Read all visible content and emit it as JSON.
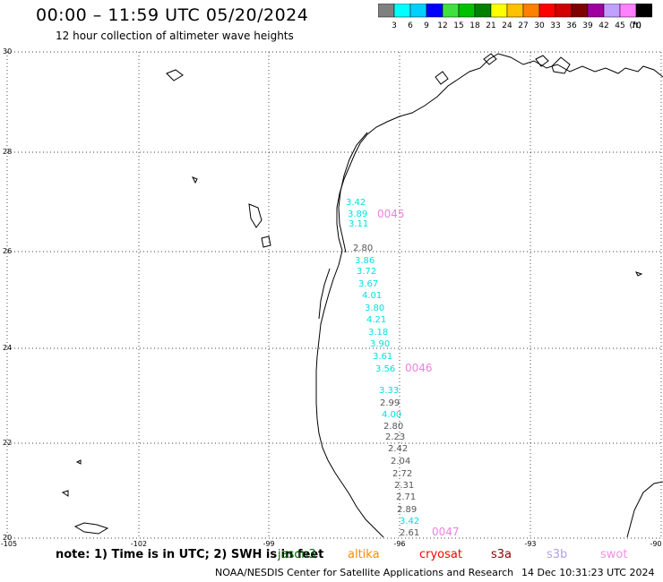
{
  "header": {
    "title": "00:00 – 11:59 UTC 05/20/2024",
    "subtitle": "12 hour collection of altimeter wave heights"
  },
  "color_scale": {
    "colors": [
      "#808080",
      "#00ffff",
      "#00d0ff",
      "#0000ff",
      "#40e040",
      "#00c000",
      "#008000",
      "#ffff00",
      "#ffc000",
      "#ff8000",
      "#ff0000",
      "#d00000",
      "#800000",
      "#a000a0",
      "#c0a0ff",
      "#ff80ff",
      "#000000"
    ],
    "labels": [
      "3",
      "6",
      "9",
      "12",
      "15",
      "18",
      "21",
      "24",
      "27",
      "30",
      "33",
      "36",
      "39",
      "42",
      "45",
      "70"
    ],
    "unit": "(ft)"
  },
  "grid": {
    "lon_labels": [
      "-105",
      "-102",
      "-99",
      "-96",
      "-93",
      "-90"
    ],
    "lat_labels": [
      "30",
      "28",
      "26",
      "24",
      "22",
      "20"
    ]
  },
  "observations": {
    "cyan": [
      "3.42",
      "3.89",
      "3.11",
      "3.86",
      "3.72",
      "3.67",
      "4.01",
      "3.80",
      "4.21",
      "3.18",
      "3.90",
      "3.61",
      "3.56",
      "3.33",
      "4.00",
      "3.42"
    ],
    "gray": [
      "2.80",
      "2.99",
      "2.80",
      "2.23",
      "2.42",
      "2.04",
      "2.72",
      "2.31",
      "2.71",
      "2.89",
      "2.61"
    ],
    "pass_ids": [
      "0045",
      "0046",
      "0047"
    ]
  },
  "footer": {
    "note": "note:  1) Time is in UTC;  2) SWH is in feet",
    "satellites": [
      {
        "name": "jason3",
        "color": "#006400"
      },
      {
        "name": "altika",
        "color": "#ff8c00"
      },
      {
        "name": "cryosat",
        "color": "#ff0000"
      },
      {
        "name": "s3a",
        "color": "#8b0000"
      },
      {
        "name": "s3b",
        "color": "#b0a0f0"
      },
      {
        "name": "swot",
        "color": "#f090e0"
      }
    ],
    "credit": "NOAA/NESDIS Center for Satellite Applications and Research",
    "timestamp": "14 Dec 10:31:23 UTC 2024"
  },
  "colors": {
    "cyan": "#00e0e0",
    "gray": "#555555",
    "pass": "#f080e0"
  }
}
